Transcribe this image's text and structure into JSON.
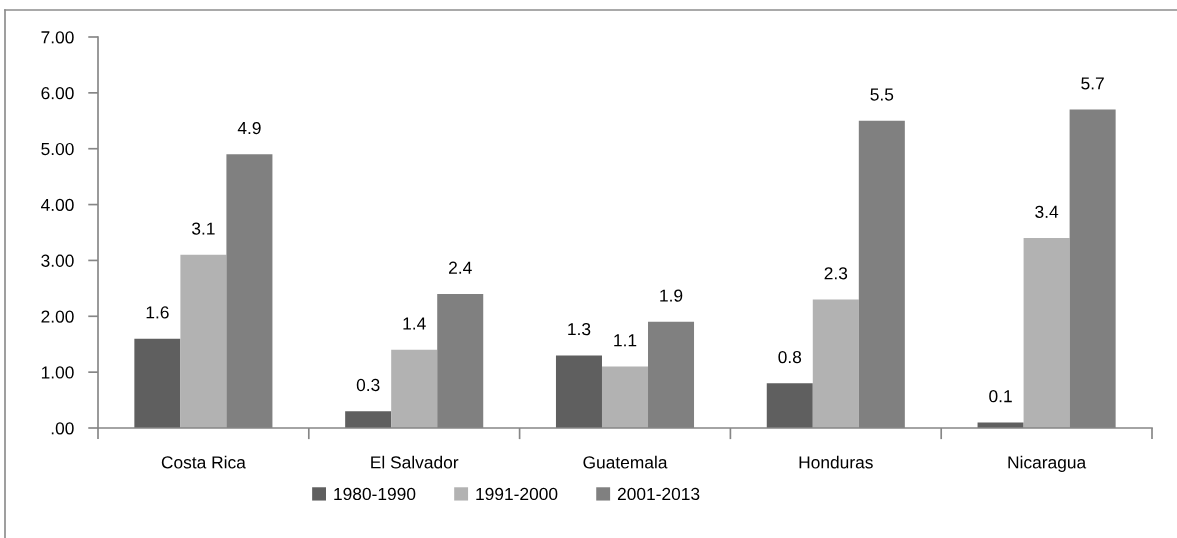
{
  "chart_data": {
    "type": "bar",
    "categories": [
      "Costa Rica",
      "El Salvador",
      "Guatemala",
      "Honduras",
      "Nicaragua"
    ],
    "series": [
      {
        "name": "1980-1990",
        "color": "#5f5f5f",
        "values": [
          1.6,
          0.3,
          1.3,
          0.8,
          0.1
        ]
      },
      {
        "name": "1991-2000",
        "color": "#b2b2b2",
        "values": [
          3.1,
          1.4,
          1.1,
          2.3,
          3.4
        ]
      },
      {
        "name": "2001-2013",
        "color": "#808080",
        "values": [
          4.9,
          2.4,
          1.9,
          5.5,
          5.7
        ]
      }
    ],
    "ylim": [
      0,
      7
    ],
    "yticks": [
      {
        "value": 0,
        "label": ".00"
      },
      {
        "value": 1,
        "label": "1.00"
      },
      {
        "value": 2,
        "label": "2.00"
      },
      {
        "value": 3,
        "label": "3.00"
      },
      {
        "value": 4,
        "label": "4.00"
      },
      {
        "value": 5,
        "label": "5.00"
      },
      {
        "value": 6,
        "label": "6.00"
      },
      {
        "value": 7,
        "label": "7.00"
      }
    ],
    "data_labels": true,
    "grid": false,
    "legend": "bottom"
  }
}
